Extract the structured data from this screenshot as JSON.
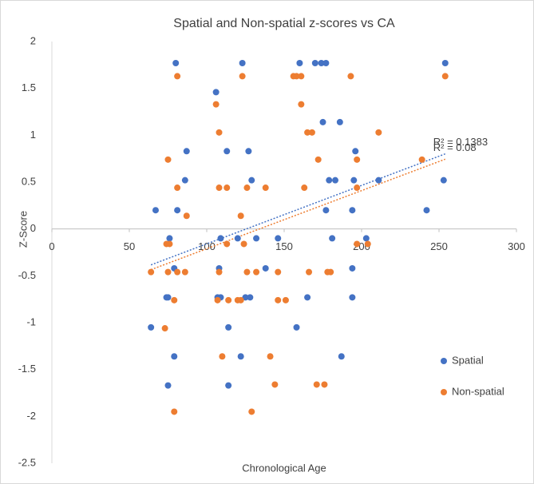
{
  "chart_data": {
    "type": "scatter",
    "title": "Spatial and Non-spatial z-scores vs CA",
    "x_label": "Chronological Age",
    "y_label": "Z-Score",
    "xlim": [
      0,
      300
    ],
    "xticks": [
      0,
      50,
      100,
      150,
      200,
      250,
      300
    ],
    "ylim": [
      -2.5,
      2
    ],
    "yticks": [
      -2.5,
      -2,
      -1.5,
      -1,
      -0.5,
      0,
      0.5,
      1,
      1.5,
      2
    ],
    "legend": "right",
    "series": [
      {
        "name": "Spatial",
        "color": "#4472c4",
        "trendline_label": "R² = 0.1383",
        "x": [
          80,
          123,
          160,
          170,
          174,
          177,
          254,
          106,
          175,
          186,
          87,
          113,
          127,
          196,
          86,
          129,
          179,
          183,
          195,
          211,
          253,
          67,
          81,
          177,
          194,
          242,
          76,
          109,
          120,
          132,
          146,
          181,
          203,
          79,
          108,
          138,
          194,
          74,
          75,
          107,
          109,
          125,
          128,
          165,
          194,
          64,
          114,
          158,
          79,
          122,
          187,
          75,
          114
        ],
        "values": [
          1.77,
          1.77,
          1.77,
          1.77,
          1.77,
          1.77,
          1.77,
          1.46,
          1.14,
          1.14,
          0.83,
          0.83,
          0.83,
          0.83,
          0.52,
          0.52,
          0.52,
          0.52,
          0.52,
          0.52,
          0.52,
          0.2,
          0.2,
          0.2,
          0.2,
          0.2,
          -0.1,
          -0.1,
          -0.1,
          -0.1,
          -0.1,
          -0.1,
          -0.1,
          -0.42,
          -0.42,
          -0.42,
          -0.42,
          -0.73,
          -0.73,
          -0.73,
          -0.73,
          -0.73,
          -0.73,
          -0.73,
          -0.73,
          -1.05,
          -1.05,
          -1.05,
          -1.36,
          -1.36,
          -1.36,
          -1.67,
          -1.67
        ]
      },
      {
        "name": "Non-spatial",
        "color": "#ed7d31",
        "trendline_label": "R² = 0.08",
        "x": [
          81,
          123,
          156,
          158,
          161,
          193,
          254,
          106,
          161,
          108,
          165,
          168,
          211,
          75,
          172,
          197,
          239,
          81,
          108,
          113,
          126,
          138,
          163,
          197,
          87,
          122,
          74,
          76,
          113,
          124,
          197,
          204,
          64,
          75,
          81,
          86,
          108,
          126,
          132,
          146,
          166,
          178,
          180,
          79,
          107,
          114,
          120,
          122,
          146,
          151,
          73,
          110,
          141,
          144,
          171,
          176,
          79,
          129
        ],
        "values": [
          1.63,
          1.63,
          1.63,
          1.63,
          1.63,
          1.63,
          1.63,
          1.33,
          1.33,
          1.03,
          1.03,
          1.03,
          1.03,
          0.74,
          0.74,
          0.74,
          0.74,
          0.44,
          0.44,
          0.44,
          0.44,
          0.44,
          0.44,
          0.44,
          0.14,
          0.14,
          -0.16,
          -0.16,
          -0.16,
          -0.16,
          -0.16,
          -0.16,
          -0.46,
          -0.46,
          -0.46,
          -0.46,
          -0.46,
          -0.46,
          -0.46,
          -0.46,
          -0.46,
          -0.46,
          -0.46,
          -0.76,
          -0.76,
          -0.76,
          -0.76,
          -0.76,
          -0.76,
          -0.76,
          -1.06,
          -1.36,
          -1.36,
          -1.66,
          -1.66,
          -1.66,
          -1.95,
          -1.95
        ]
      }
    ]
  }
}
